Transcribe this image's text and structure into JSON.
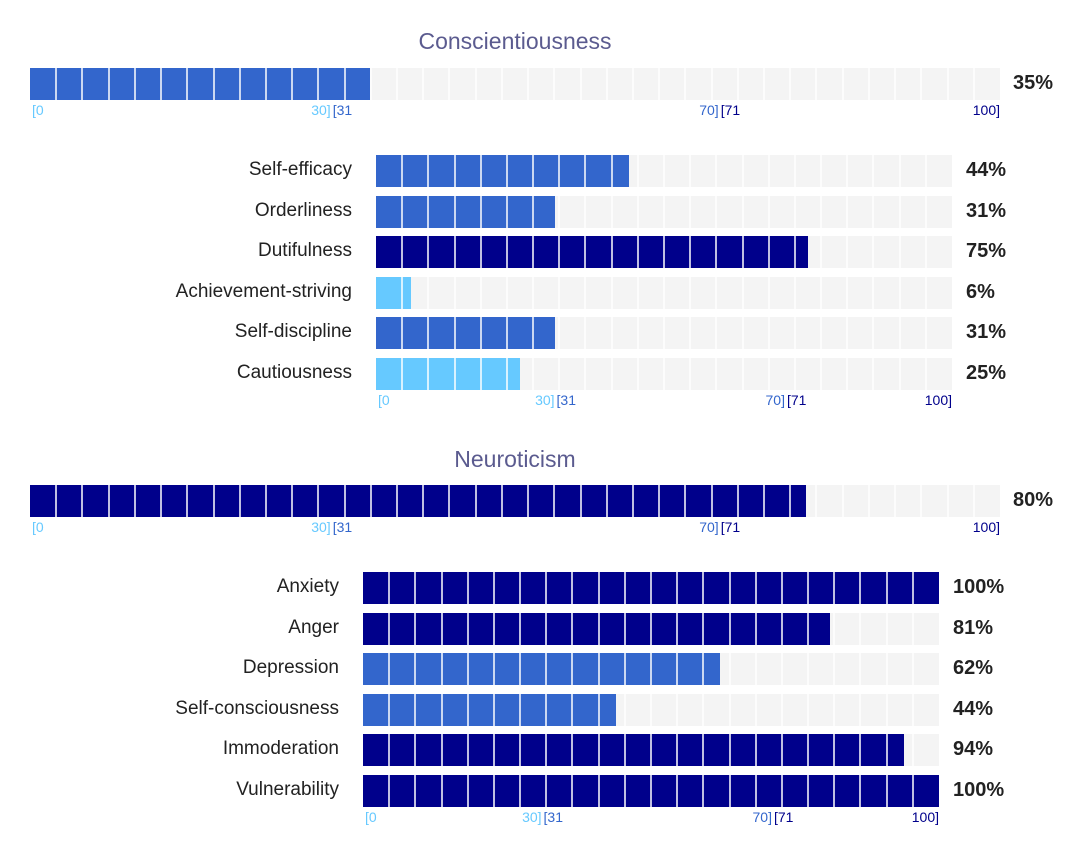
{
  "colors": {
    "low": "#66c9ff",
    "mid": "#3366cc",
    "high": "#00008b",
    "track": "#f4f4f4",
    "title": "#5b5b8f"
  },
  "ticks": {
    "t0": "[0",
    "t30": "30]",
    "t31": "[31",
    "t70": "70]",
    "t71": "[71",
    "t100": "100]"
  },
  "chart_data": [
    {
      "type": "bar",
      "title": "Conscientiousness",
      "overall": {
        "value": 35,
        "label": "35%",
        "band": "mid"
      },
      "xlim": [
        0,
        100
      ],
      "categories": [
        "Self-efficacy",
        "Orderliness",
        "Dutifulness",
        "Achievement-striving",
        "Self-discipline",
        "Cautiousness"
      ],
      "values": [
        44,
        31,
        75,
        6,
        31,
        25
      ],
      "value_labels": [
        "44%",
        "31%",
        "75%",
        "6%",
        "31%",
        "25%"
      ],
      "bands": [
        "mid",
        "mid",
        "high",
        "low",
        "mid",
        "low"
      ]
    },
    {
      "type": "bar",
      "title": "Neuroticism",
      "overall": {
        "value": 80,
        "label": "80%",
        "band": "high"
      },
      "xlim": [
        0,
        100
      ],
      "categories": [
        "Anxiety",
        "Anger",
        "Depression",
        "Self-consciousness",
        "Immoderation",
        "Vulnerability"
      ],
      "values": [
        100,
        81,
        62,
        44,
        94,
        100
      ],
      "value_labels": [
        "100%",
        "81%",
        "62%",
        "44%",
        "94%",
        "100%"
      ],
      "bands": [
        "high",
        "high",
        "mid",
        "mid",
        "high",
        "high"
      ]
    }
  ]
}
